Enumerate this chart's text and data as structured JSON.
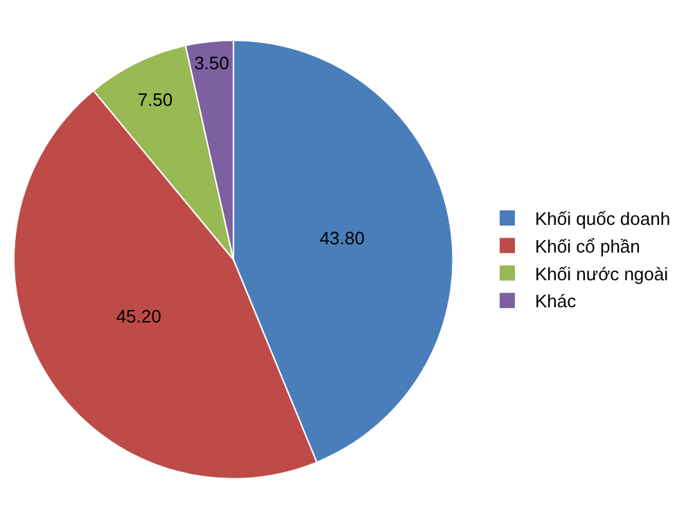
{
  "chart_data": {
    "type": "pie",
    "categories": [
      "Khối quốc doanh",
      "Khối cổ phần",
      "Khối nước ngoài",
      "Khác"
    ],
    "values": [
      43.8,
      45.2,
      7.5,
      3.5
    ],
    "value_labels": [
      "43.80",
      "45.20",
      "7.50",
      "3.50"
    ],
    "colors": [
      "#4a7ebb",
      "#be4b48",
      "#98b954",
      "#7d60a0"
    ],
    "legend": "right"
  }
}
